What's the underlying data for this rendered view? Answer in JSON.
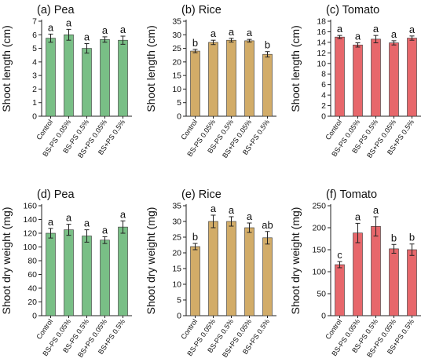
{
  "colors": {
    "pea": "#79bf86",
    "rice": "#d2ac68",
    "tomato": "#e7676b",
    "axis": "#222222",
    "bar_edge": "#333333",
    "error_bar": "#222222"
  },
  "chart_data": [
    {
      "type": "bar",
      "panel_title": "(a) Pea",
      "ylabel": "Shoot length (cm)",
      "categories": [
        "Control",
        "BS-PS 0.05%",
        "BS-PS 0.5%",
        "BS+PS 0.05%",
        "BS+PS 0.5%"
      ],
      "values": [
        5.75,
        6.0,
        5.0,
        5.65,
        5.6
      ],
      "errors": [
        0.3,
        0.4,
        0.35,
        0.2,
        0.3
      ],
      "letters": [
        "a",
        "a",
        "a",
        "a",
        "a"
      ],
      "ylim": [
        0,
        7
      ],
      "yticks": [
        0,
        1,
        2,
        3,
        4,
        5,
        6,
        7
      ],
      "color_key": "pea"
    },
    {
      "type": "bar",
      "panel_title": "(b) Rice",
      "ylabel": "Shoot length (cm)",
      "categories": [
        "Control",
        "BS-PS 0.05%",
        "BS-PS 0.5%",
        "BS+PS 0.05%",
        "BS+PS 0.5%"
      ],
      "values": [
        24.0,
        27.2,
        28.0,
        27.8,
        22.8
      ],
      "errors": [
        0.6,
        0.8,
        0.7,
        0.5,
        1.0
      ],
      "letters": [
        "b",
        "a",
        "a",
        "a",
        "b"
      ],
      "ylim": [
        0,
        35
      ],
      "yticks": [
        0,
        5,
        10,
        15,
        20,
        25,
        30,
        35
      ],
      "color_key": "rice"
    },
    {
      "type": "bar",
      "panel_title": "(c) Tomato",
      "ylabel": "Shoot length (cm)",
      "categories": [
        "Control",
        "BS-PS 0.05%",
        "BS-PS 0.5%",
        "BS+PS 0.05%",
        "BS+PS 0.5%"
      ],
      "values": [
        15.0,
        13.5,
        14.6,
        13.9,
        14.8
      ],
      "errors": [
        0.3,
        0.4,
        0.7,
        0.4,
        0.4
      ],
      "letters": [
        "a",
        "a",
        "a",
        "a",
        "a"
      ],
      "ylim": [
        0,
        18
      ],
      "yticks": [
        0,
        2,
        4,
        6,
        8,
        10,
        12,
        14,
        16,
        18
      ],
      "color_key": "tomato"
    },
    {
      "type": "bar",
      "panel_title": "(d) Pea",
      "ylabel": "Shoot dry weight (mg)",
      "categories": [
        "Control",
        "BS-PS 0.05%",
        "BS-PS 0.5%",
        "BS+PS 0.05%",
        "BS+PS 0.5%"
      ],
      "values": [
        120,
        125,
        116,
        110,
        129
      ],
      "errors": [
        7,
        8,
        9,
        5,
        9
      ],
      "letters": [
        "a",
        "a",
        "a",
        "a",
        "a"
      ],
      "ylim": [
        0,
        160
      ],
      "yticks": [
        0,
        20,
        40,
        60,
        80,
        100,
        120,
        140,
        160
      ],
      "color_key": "pea"
    },
    {
      "type": "bar",
      "panel_title": "(e) Rice",
      "ylabel": "Shoot dry weight (mg)",
      "categories": [
        "Control",
        "BS-PS 0.05%",
        "BS-PS 0.5%",
        "BS+PS 0.05%",
        "BS+PS 0.5%"
      ],
      "values": [
        22.0,
        30.0,
        30.0,
        28.0,
        24.8
      ],
      "errors": [
        1.0,
        2.0,
        1.5,
        1.5,
        2.0
      ],
      "letters": [
        "b",
        "a",
        "a",
        "a",
        "ab"
      ],
      "ylim": [
        0,
        35
      ],
      "yticks": [
        0,
        5,
        10,
        15,
        20,
        25,
        30,
        35
      ],
      "color_key": "rice"
    },
    {
      "type": "bar",
      "panel_title": "(f) Tomato",
      "ylabel": "Shoot dry weight (mg)",
      "categories": [
        "Control",
        "BS-PS 0.05%",
        "BS-PS 0.5%",
        "BS+PS 0.05%",
        "BS+PS 0.5%"
      ],
      "values": [
        116,
        188,
        203,
        152,
        150
      ],
      "errors": [
        7,
        22,
        22,
        10,
        13
      ],
      "letters": [
        "c",
        "a",
        "a",
        "b",
        "b"
      ],
      "ylim": [
        0,
        250
      ],
      "yticks": [
        0,
        50,
        100,
        150,
        200,
        250
      ],
      "color_key": "tomato"
    }
  ]
}
